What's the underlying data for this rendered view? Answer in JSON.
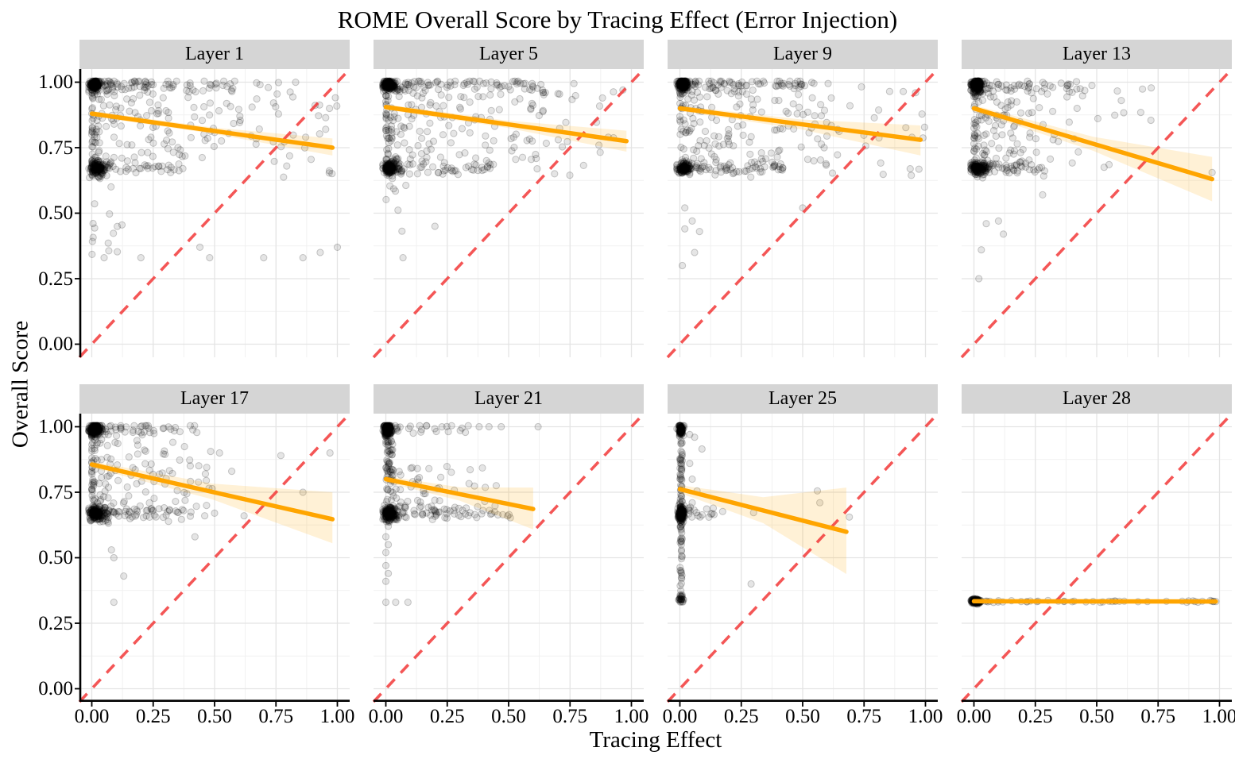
{
  "title": "ROME Overall Score by Tracing Effect (Error Injection)",
  "axes": {
    "x_title": "Tracing Effect",
    "y_title": "Overall Score",
    "x_ticks": [
      "0.00",
      "0.25",
      "0.50",
      "0.75",
      "1.00"
    ],
    "y_ticks": [
      "1.00",
      "0.75",
      "0.50",
      "0.25",
      "0.00"
    ],
    "x_range": [
      0,
      1
    ],
    "y_range": [
      0,
      1
    ],
    "grid": "major 0.25 steps, minor 0.125 steps"
  },
  "colors": {
    "trend_line": "#FFA500",
    "ci_ribbon": "rgba(255,166,0,0.16)",
    "reference_line": "rgba(242,56,56,0.85)",
    "point_fill": "rgba(0,0,0,0.10)",
    "point_stroke": "rgba(0,0,0,0.20)",
    "strip_background": "#d5d5d5",
    "grid_major": "#e4e4e4",
    "grid_minor": "#f1f1f1",
    "axis_line": "#000000"
  },
  "chart_data": [
    {
      "type": "scatter",
      "label": "Layer 1",
      "trend": {
        "x0": 0,
        "y0": 0.88,
        "x1": 0.98,
        "y1": 0.75
      },
      "ribbon": {
        "x0": 0,
        "lo0": 0.87,
        "hi0": 0.89,
        "x1": 0.98,
        "lo1": 0.72,
        "hi1": 0.785
      },
      "reference": "y=x dashed diagonal",
      "clusters": [
        {
          "k": "gauss",
          "n": 140,
          "cx": 0.012,
          "cy": 0.99,
          "sx": 0.012,
          "sy": 0.01
        },
        {
          "k": "gauss",
          "n": 110,
          "cx": 0.02,
          "cy": 0.67,
          "sx": 0.015,
          "sy": 0.012
        },
        {
          "k": "bandx",
          "n": 100,
          "x0": 0,
          "x1": 0.6,
          "pow": 2.2,
          "y": 0.99,
          "sy": 0.013
        },
        {
          "k": "bandx",
          "n": 70,
          "x0": 0,
          "x1": 0.38,
          "pow": 2.0,
          "y": 0.672,
          "sy": 0.012
        },
        {
          "k": "unif",
          "n": 150,
          "x0": 0,
          "x1": 0.62,
          "y0": 0.68,
          "y1": 0.97,
          "powx": 2.3
        },
        {
          "k": "unif",
          "n": 40,
          "x0": 0.6,
          "x1": 1.0,
          "y0": 0.63,
          "y1": 1.0,
          "powx": 1
        },
        {
          "k": "unif",
          "n": 14,
          "x0": 0,
          "x1": 0.16,
          "y0": 0.3,
          "y1": 0.63,
          "powx": 1.5
        },
        {
          "k": "list",
          "pts": [
            [
              0.44,
              0.37
            ],
            [
              0.2,
              0.33
            ],
            [
              0.48,
              0.33
            ],
            [
              0.7,
              0.33
            ],
            [
              0.86,
              0.33
            ],
            [
              0.93,
              0.35
            ],
            [
              1.0,
              0.37
            ],
            [
              0.05,
              0.33
            ]
          ]
        }
      ]
    },
    {
      "type": "scatter",
      "label": "Layer 5",
      "trend": {
        "x0": 0,
        "y0": 0.905,
        "x1": 0.98,
        "y1": 0.775
      },
      "ribbon": {
        "x0": 0,
        "lo0": 0.895,
        "hi0": 0.915,
        "x1": 0.98,
        "lo1": 0.735,
        "hi1": 0.815
      },
      "reference": "y=x dashed diagonal",
      "clusters": [
        {
          "k": "gauss",
          "n": 150,
          "cx": 0.012,
          "cy": 0.99,
          "sx": 0.012,
          "sy": 0.01
        },
        {
          "k": "gauss",
          "n": 110,
          "cx": 0.02,
          "cy": 0.672,
          "sx": 0.015,
          "sy": 0.012
        },
        {
          "k": "bandx",
          "n": 110,
          "x0": 0,
          "x1": 0.65,
          "pow": 2.2,
          "y": 0.99,
          "sy": 0.013
        },
        {
          "k": "bandx",
          "n": 80,
          "x0": 0,
          "x1": 0.45,
          "pow": 2.0,
          "y": 0.672,
          "sy": 0.012
        },
        {
          "k": "unif",
          "n": 150,
          "x0": 0,
          "x1": 0.6,
          "y0": 0.68,
          "y1": 0.97,
          "powx": 2.3
        },
        {
          "k": "unif",
          "n": 35,
          "x0": 0.55,
          "x1": 1.0,
          "y0": 0.64,
          "y1": 1.0,
          "powx": 1
        },
        {
          "k": "unif",
          "n": 8,
          "x0": 0,
          "x1": 0.1,
          "y0": 0.42,
          "y1": 0.64,
          "powx": 1.5
        },
        {
          "k": "list",
          "pts": [
            [
              0.2,
              0.45
            ],
            [
              0.07,
              0.33
            ]
          ]
        }
      ]
    },
    {
      "type": "scatter",
      "label": "Layer 9",
      "trend": {
        "x0": 0,
        "y0": 0.9,
        "x1": 0.98,
        "y1": 0.78
      },
      "ribbon": {
        "x0": 0,
        "lo0": 0.89,
        "hi0": 0.91,
        "x1": 0.98,
        "lo1": 0.72,
        "hi1": 0.835
      },
      "reference": "y=x dashed diagonal",
      "clusters": [
        {
          "k": "gauss",
          "n": 150,
          "cx": 0.012,
          "cy": 0.99,
          "sx": 0.012,
          "sy": 0.01
        },
        {
          "k": "gauss",
          "n": 100,
          "cx": 0.02,
          "cy": 0.672,
          "sx": 0.015,
          "sy": 0.012
        },
        {
          "k": "bandx",
          "n": 110,
          "x0": 0,
          "x1": 0.55,
          "pow": 2.2,
          "y": 0.99,
          "sy": 0.013
        },
        {
          "k": "bandx",
          "n": 80,
          "x0": 0,
          "x1": 0.42,
          "pow": 2.0,
          "y": 0.672,
          "sy": 0.012
        },
        {
          "k": "unif",
          "n": 140,
          "x0": 0,
          "x1": 0.6,
          "y0": 0.68,
          "y1": 0.97,
          "powx": 2.3
        },
        {
          "k": "unif",
          "n": 30,
          "x0": 0.55,
          "x1": 1.0,
          "y0": 0.63,
          "y1": 1.0,
          "powx": 1
        },
        {
          "k": "list",
          "pts": [
            [
              0.02,
              0.52
            ],
            [
              0.05,
              0.47
            ],
            [
              0.08,
              0.43
            ],
            [
              0.06,
              0.35
            ],
            [
              0.01,
              0.3
            ],
            [
              0.5,
              0.52
            ],
            [
              0.02,
              0.44
            ]
          ]
        }
      ]
    },
    {
      "type": "scatter",
      "label": "Layer 13",
      "trend": {
        "x0": 0,
        "y0": 0.9,
        "x1": 0.97,
        "y1": 0.63
      },
      "ribbon": {
        "x0": 0,
        "lo0": 0.888,
        "hi0": 0.912,
        "x1": 0.97,
        "lo1": 0.545,
        "hi1": 0.715
      },
      "reference": "y=x dashed diagonal",
      "clusters": [
        {
          "k": "gauss",
          "n": 170,
          "cx": 0.012,
          "cy": 0.99,
          "sx": 0.012,
          "sy": 0.012
        },
        {
          "k": "gauss",
          "n": 120,
          "cx": 0.02,
          "cy": 0.672,
          "sx": 0.02,
          "sy": 0.013
        },
        {
          "k": "bandx",
          "n": 80,
          "x0": 0,
          "x1": 0.42,
          "pow": 2.2,
          "y": 0.985,
          "sy": 0.015
        },
        {
          "k": "bandx",
          "n": 60,
          "x0": 0,
          "x1": 0.3,
          "pow": 2.0,
          "y": 0.672,
          "sy": 0.013
        },
        {
          "k": "unif",
          "n": 120,
          "x0": 0,
          "x1": 0.45,
          "y0": 0.68,
          "y1": 0.97,
          "powx": 2.5
        },
        {
          "k": "unif",
          "n": 12,
          "x0": 0.4,
          "x1": 0.75,
          "y0": 0.85,
          "y1": 1.0,
          "powx": 1
        },
        {
          "k": "list",
          "pts": [
            [
              0.97,
              0.655
            ],
            [
              0.42,
              0.9
            ],
            [
              0.6,
              0.93
            ],
            [
              0.05,
              0.46
            ],
            [
              0.1,
              0.47
            ],
            [
              0.03,
              0.36
            ],
            [
              0.02,
              0.25
            ],
            [
              0.55,
              0.685
            ],
            [
              0.53,
              0.675
            ],
            [
              0.28,
              0.57
            ],
            [
              0.12,
              0.42
            ]
          ]
        }
      ]
    },
    {
      "type": "scatter",
      "label": "Layer 17",
      "trend": {
        "x0": 0,
        "y0": 0.856,
        "x1": 0.98,
        "y1": 0.647
      },
      "ribbon": {
        "x0": 0,
        "lo0": 0.844,
        "hi0": 0.868,
        "x1": 0.98,
        "lo1": 0.555,
        "hi1": 0.75
      },
      "reference": "y=x dashed diagonal",
      "clusters": [
        {
          "k": "gauss",
          "n": 160,
          "cx": 0.012,
          "cy": 0.99,
          "sx": 0.012,
          "sy": 0.012
        },
        {
          "k": "gauss",
          "n": 130,
          "cx": 0.02,
          "cy": 0.668,
          "sx": 0.02,
          "sy": 0.013
        },
        {
          "k": "bandx",
          "n": 80,
          "x0": 0,
          "x1": 0.45,
          "pow": 2.2,
          "y": 0.99,
          "sy": 0.014
        },
        {
          "k": "bandx",
          "n": 90,
          "x0": 0,
          "x1": 0.42,
          "pow": 1.8,
          "y": 0.668,
          "sy": 0.013
        },
        {
          "k": "unif",
          "n": 130,
          "x0": 0,
          "x1": 0.5,
          "y0": 0.68,
          "y1": 0.97,
          "powx": 2.5
        },
        {
          "k": "list",
          "pts": [
            [
              0.52,
              0.9
            ],
            [
              0.57,
              0.83
            ],
            [
              0.77,
              0.89
            ],
            [
              0.97,
              0.9
            ],
            [
              0.86,
              0.75
            ],
            [
              0.62,
              0.66
            ],
            [
              0.42,
              0.58
            ],
            [
              0.08,
              0.53
            ],
            [
              0.09,
              0.5
            ],
            [
              0.13,
              0.43
            ],
            [
              0.09,
              0.33
            ],
            [
              0.46,
              0.66
            ],
            [
              0.5,
              0.67
            ]
          ]
        }
      ]
    },
    {
      "type": "scatter",
      "label": "Layer 21",
      "trend": {
        "x0": 0,
        "y0": 0.8,
        "x1": 0.6,
        "y1": 0.686
      },
      "ribbon": {
        "x0": 0,
        "lo0": 0.788,
        "hi0": 0.812,
        "x1": 0.6,
        "lo1": 0.608,
        "hi1": 0.768
      },
      "reference": "y=x dashed diagonal",
      "clusters": [
        {
          "k": "gauss",
          "n": 170,
          "cx": 0.008,
          "cy": 0.99,
          "sx": 0.008,
          "sy": 0.012
        },
        {
          "k": "gauss",
          "n": 150,
          "cx": 0.015,
          "cy": 0.668,
          "sx": 0.015,
          "sy": 0.013
        },
        {
          "k": "unif",
          "n": 60,
          "x0": 0,
          "x1": 0.03,
          "y0": 0.7,
          "y1": 0.97,
          "powx": 1
        },
        {
          "k": "bandx",
          "n": 90,
          "x0": 0,
          "x1": 0.52,
          "pow": 1.8,
          "y": 0.668,
          "sy": 0.013
        },
        {
          "k": "bandx",
          "n": 40,
          "x0": 0,
          "x1": 0.35,
          "pow": 2.2,
          "y": 0.99,
          "sy": 0.012
        },
        {
          "k": "unif",
          "n": 50,
          "x0": 0.02,
          "x1": 0.45,
          "y0": 0.69,
          "y1": 0.85,
          "powx": 2
        },
        {
          "k": "list",
          "pts": [
            [
              0.38,
              1.0
            ],
            [
              0.42,
              1.0
            ],
            [
              0.47,
              1.0
            ],
            [
              0.62,
              1.0
            ],
            [
              0.31,
              0.995
            ],
            [
              0.0,
              0.52
            ],
            [
              0.01,
              0.55
            ],
            [
              0.0,
              0.47
            ],
            [
              0.01,
              0.44
            ],
            [
              0.0,
              0.41
            ],
            [
              0.0,
              0.33
            ],
            [
              0.04,
              0.33
            ],
            [
              0.09,
              0.33
            ],
            [
              0.0,
              0.58
            ],
            [
              0.01,
              0.62
            ]
          ]
        }
      ]
    },
    {
      "type": "scatter",
      "label": "Layer 25",
      "trend": {
        "x0": 0,
        "y0": 0.762,
        "x1": 0.678,
        "y1": 0.599
      },
      "ribbon": {
        "x0": 0,
        "lo0": 0.747,
        "hi0": 0.777,
        "x1": 0.678,
        "lo1": 0.438,
        "hi1": 0.768
      },
      "reference": "y=x dashed diagonal",
      "clusters": [
        {
          "k": "gauss",
          "n": 90,
          "cx": 0.004,
          "cy": 0.99,
          "sx": 0.005,
          "sy": 0.012
        },
        {
          "k": "gauss",
          "n": 140,
          "cx": 0.006,
          "cy": 0.668,
          "sx": 0.006,
          "sy": 0.015
        },
        {
          "k": "unif",
          "n": 90,
          "x0": 0,
          "x1": 0.01,
          "y0": 0.35,
          "y1": 0.99,
          "powx": 1
        },
        {
          "k": "gauss",
          "n": 25,
          "cx": 0.005,
          "cy": 0.345,
          "sx": 0.005,
          "sy": 0.008
        },
        {
          "k": "bandx",
          "n": 18,
          "x0": 0.01,
          "x1": 0.2,
          "pow": 1.6,
          "y": 0.67,
          "sy": 0.01
        },
        {
          "k": "list",
          "pts": [
            [
              0.3,
              0.672
            ],
            [
              0.56,
              0.755
            ],
            [
              0.57,
              0.71
            ],
            [
              0.69,
              0.655
            ],
            [
              0.29,
              0.4
            ],
            [
              0.04,
              0.97
            ],
            [
              0.06,
              0.96
            ],
            [
              0.09,
              0.915
            ],
            [
              0.04,
              0.86
            ],
            [
              0.05,
              0.8
            ],
            [
              0.07,
              0.755
            ],
            [
              0.05,
              0.71
            ]
          ]
        }
      ]
    },
    {
      "type": "scatter",
      "label": "Layer 28",
      "trend": {
        "x0": 0,
        "y0": 0.334,
        "x1": 0.985,
        "y1": 0.333
      },
      "ribbon": {
        "x0": 0,
        "lo0": 0.329,
        "hi0": 0.339,
        "x1": 0.985,
        "lo1": 0.327,
        "hi1": 0.341
      },
      "reference": "y=x dashed diagonal",
      "clusters": [
        {
          "k": "gauss",
          "n": 160,
          "cx": 0.008,
          "cy": 0.334,
          "sx": 0.008,
          "sy": 0.004
        },
        {
          "k": "bandx",
          "n": 45,
          "x0": 0.02,
          "x1": 1.0,
          "pow": 1.6,
          "y": 0.334,
          "sy": 0.002
        },
        {
          "k": "list",
          "pts": [
            [
              0.985,
              0.333
            ],
            [
              0.9,
              0.333
            ],
            [
              0.93,
              0.334
            ]
          ]
        }
      ]
    }
  ]
}
